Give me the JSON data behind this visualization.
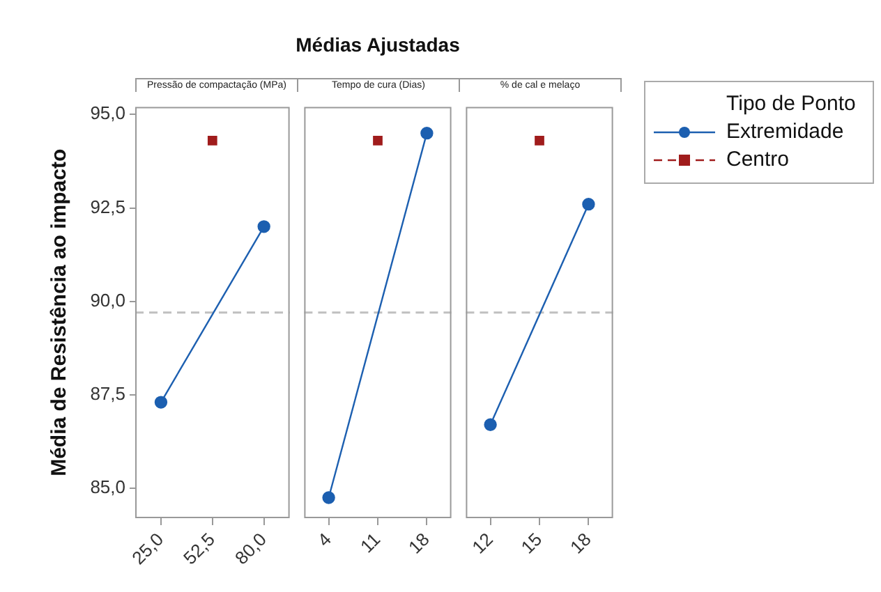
{
  "chart_data": [
    {
      "type": "line",
      "subtitle": "Pressão de compactação (MPa)",
      "ylabel": "Média de Resistência ao impacto",
      "categories": [
        "25,0",
        "52,5",
        "80,0"
      ],
      "ylim": [
        84.2,
        95.2
      ],
      "yticks": [
        {
          "value": 85,
          "label": "85,0"
        },
        {
          "value": 87.5,
          "label": "87,5"
        },
        {
          "value": 90,
          "label": "90,0"
        },
        {
          "value": 92.5,
          "label": "92,5"
        },
        {
          "value": 95,
          "label": "95,0"
        }
      ],
      "grid": false,
      "legend": "right",
      "legend_title": "Tipo de Ponto",
      "ref_lines": [
        {
          "axis": "y",
          "value": 89.7,
          "color": "#c0c0c0",
          "line_style": "dashed"
        }
      ],
      "series": [
        {
          "name": "Extremidade",
          "color": "#1c5fb0",
          "marker": "circle",
          "line_style": "solid",
          "values": [
            87.3,
            null,
            92.0
          ]
        },
        {
          "name": "Centro",
          "color": "#a01c1c",
          "marker": "square",
          "line_style": "dashed",
          "values": [
            null,
            94.3,
            null
          ]
        }
      ]
    },
    {
      "type": "line",
      "title": "Médias Ajustadas",
      "subtitle": "Tempo de cura (Dias)",
      "categories": [
        "4",
        "11",
        "18"
      ],
      "ylim": [
        84.2,
        95.2
      ],
      "tick_labels": "x",
      "grid": false,
      "ref_lines": [
        {
          "axis": "y",
          "value": 89.7,
          "color": "#c0c0c0",
          "line_style": "dashed"
        }
      ],
      "series": [
        {
          "color": "#1c5fb0",
          "marker": "circle",
          "line_style": "solid",
          "values": [
            84.75,
            null,
            94.5
          ]
        },
        {
          "color": "#a01c1c",
          "marker": "square",
          "line_style": "dashed",
          "values": [
            null,
            94.3,
            null
          ]
        }
      ]
    },
    {
      "type": "line",
      "subtitle": "% de cal e melaço",
      "categories": [
        "12",
        "15",
        "18"
      ],
      "ylim": [
        84.2,
        95.2
      ],
      "tick_labels": "x",
      "grid": false,
      "ref_lines": [
        {
          "axis": "y",
          "value": 89.7,
          "color": "#c0c0c0",
          "line_style": "dashed"
        }
      ],
      "series": [
        {
          "color": "#1c5fb0",
          "marker": "circle",
          "line_style": "solid",
          "values": [
            86.7,
            null,
            92.6
          ]
        },
        {
          "color": "#a01c1c",
          "marker": "square",
          "line_style": "dashed",
          "values": [
            null,
            94.3,
            null
          ]
        }
      ]
    }
  ]
}
